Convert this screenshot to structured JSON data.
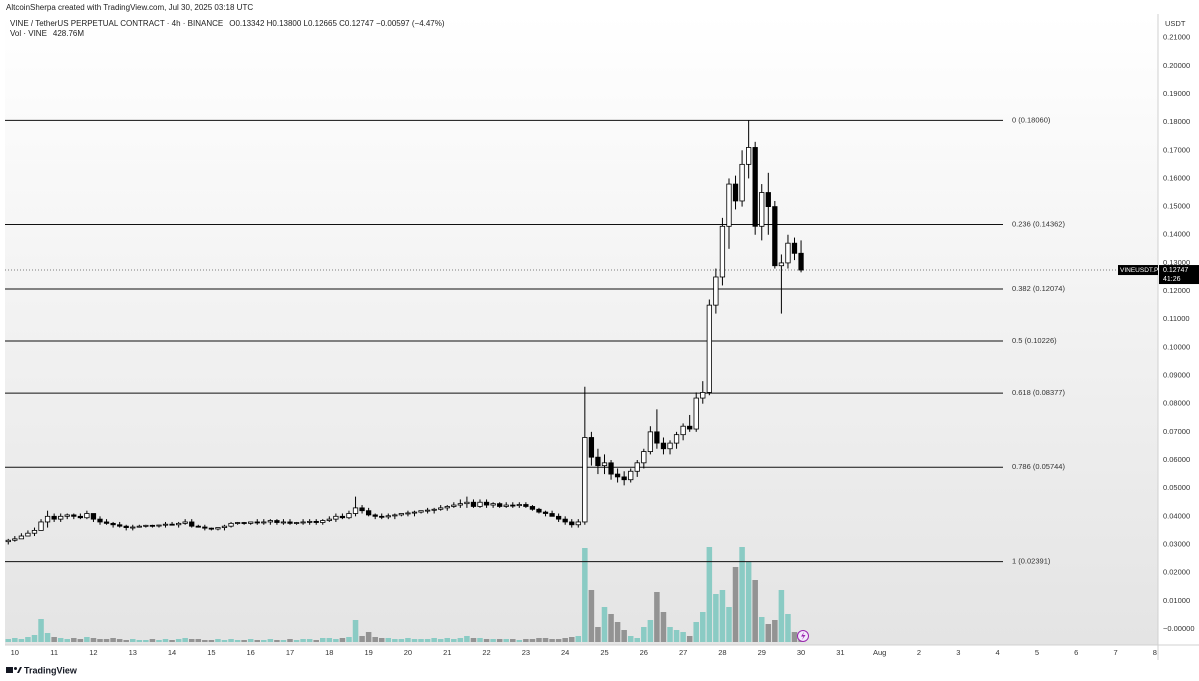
{
  "chart_data": {
    "type": "candlestick",
    "attribution": "AltcoinSherpa created with TradingView.com, Jul 30, 2025 03:18 UTC",
    "title": "VINE / TetherUS PERPETUAL CONTRACT · 4h · BINANCE",
    "ohlc_legend": "O0.13342 H0.13800 L0.12665 C0.12747 −0.00597 (−4.47%)",
    "volume_legend": "Vol · VINE",
    "volume_last_label": "428.76M",
    "y_label": "USDT",
    "footer": "TradingView",
    "price_tag": {
      "symbol": "VINEUSDT.P",
      "countdown": "41:26"
    },
    "up_color": "#ffffff",
    "down_color": "#000000",
    "volume_up_color": "#7fc8c0",
    "volume_down_color": "#8a8a8a",
    "xlim": [
      9.75,
      39.08
    ],
    "xticks": [
      10,
      11,
      12,
      13,
      14,
      15,
      16,
      17,
      18,
      19,
      20,
      21,
      22,
      23,
      24,
      25,
      26,
      27,
      28,
      29,
      30,
      31,
      {
        "value": 32,
        "label": "Aug"
      },
      {
        "value": 33,
        "label": "2"
      },
      {
        "value": 34,
        "label": "3"
      },
      {
        "value": 35,
        "label": "4"
      },
      {
        "value": 36,
        "label": "5"
      },
      {
        "value": 37,
        "label": "6"
      },
      {
        "value": 38,
        "label": "7"
      },
      {
        "value": 39,
        "label": "8"
      }
    ],
    "ylim": [
      -0.0057,
      0.2184
    ],
    "yticks": [
      {
        "value": 0.21,
        "label": "0.21000"
      },
      {
        "value": 0.2,
        "label": "0.20000"
      },
      {
        "value": 0.19,
        "label": "0.19000"
      },
      {
        "value": 0.18,
        "label": "0.18000"
      },
      {
        "value": 0.17,
        "label": "0.17000"
      },
      {
        "value": 0.16,
        "label": "0.16000"
      },
      {
        "value": 0.15,
        "label": "0.15000"
      },
      {
        "value": 0.14,
        "label": "0.14000"
      },
      {
        "value": 0.13,
        "label": "0.13000"
      },
      {
        "value": 0.12,
        "label": "0.12000"
      },
      {
        "value": 0.11,
        "label": "0.11000"
      },
      {
        "value": 0.1,
        "label": "0.10000"
      },
      {
        "value": 0.09,
        "label": "0.09000"
      },
      {
        "value": 0.08,
        "label": "0.08000"
      },
      {
        "value": 0.07,
        "label": "0.07000"
      },
      {
        "value": 0.06,
        "label": "0.06000"
      },
      {
        "value": 0.05,
        "label": "0.05000"
      },
      {
        "value": 0.04,
        "label": "0.04000"
      },
      {
        "value": 0.03,
        "label": "0.03000"
      },
      {
        "value": 0.02,
        "label": "0.02000"
      },
      {
        "value": 0.01,
        "label": "0.01000"
      },
      {
        "value": 0,
        "label": "−0.00000"
      }
    ],
    "fib_levels": [
      {
        "label": "0 (0.18060)",
        "value": 0.1806
      },
      {
        "label": "0.236 (0.14362)",
        "value": 0.14362
      },
      {
        "label": "0.382 (0.12074)",
        "value": 0.12074
      },
      {
        "label": "0.5 (0.10226)",
        "value": 0.10226
      },
      {
        "label": "0.618 (0.08377)",
        "value": 0.08377
      },
      {
        "label": "0.786 (0.05744)",
        "value": 0.05744
      },
      {
        "label": "1 (0.02391)",
        "value": 0.02391
      }
    ],
    "x": [
      9.833,
      10,
      10.167,
      10.333,
      10.5,
      10.667,
      10.833,
      11,
      11.167,
      11.333,
      11.5,
      11.667,
      11.833,
      12,
      12.167,
      12.333,
      12.5,
      12.667,
      12.833,
      13,
      13.167,
      13.333,
      13.5,
      13.667,
      13.833,
      14,
      14.167,
      14.333,
      14.5,
      14.667,
      14.833,
      15,
      15.167,
      15.333,
      15.5,
      15.667,
      15.833,
      16,
      16.167,
      16.333,
      16.5,
      16.667,
      16.833,
      17,
      17.167,
      17.333,
      17.5,
      17.667,
      17.833,
      18,
      18.167,
      18.333,
      18.5,
      18.667,
      18.833,
      19,
      19.167,
      19.333,
      19.5,
      19.667,
      19.833,
      20,
      20.167,
      20.333,
      20.5,
      20.667,
      20.833,
      21,
      21.167,
      21.333,
      21.5,
      21.667,
      21.833,
      22,
      22.167,
      22.333,
      22.5,
      22.667,
      22.833,
      23,
      23.167,
      23.333,
      23.5,
      23.667,
      23.833,
      24,
      24.167,
      24.333,
      24.5,
      24.667,
      24.833,
      25,
      25.167,
      25.333,
      25.5,
      25.667,
      25.833,
      26,
      26.167,
      26.333,
      26.5,
      26.667,
      26.833,
      27,
      27.167,
      27.333,
      27.5,
      27.667,
      27.833,
      28,
      28.167,
      28.333,
      28.5,
      28.667,
      28.833,
      29,
      29.167,
      29.333,
      29.5,
      29.667,
      29.833,
      30
    ],
    "open": [
      0.031,
      0.0315,
      0.032,
      0.033,
      0.034,
      0.035,
      0.038,
      0.04,
      0.039,
      0.04,
      0.0405,
      0.04,
      0.0395,
      0.041,
      0.039,
      0.038,
      0.0375,
      0.037,
      0.0365,
      0.036,
      0.0362,
      0.0365,
      0.0368,
      0.0366,
      0.0369,
      0.0372,
      0.037,
      0.0375,
      0.038,
      0.0365,
      0.0362,
      0.0358,
      0.0355,
      0.036,
      0.0365,
      0.0375,
      0.0378,
      0.0375,
      0.038,
      0.0378,
      0.038,
      0.0385,
      0.0378,
      0.038,
      0.0375,
      0.0378,
      0.038,
      0.0382,
      0.0378,
      0.0385,
      0.039,
      0.04,
      0.0395,
      0.041,
      0.043,
      0.042,
      0.0405,
      0.04,
      0.0398,
      0.0402,
      0.0405,
      0.041,
      0.0412,
      0.0415,
      0.042,
      0.0422,
      0.0425,
      0.043,
      0.0435,
      0.044,
      0.0445,
      0.045,
      0.0435,
      0.045,
      0.044,
      0.0445,
      0.0435,
      0.044,
      0.0438,
      0.0442,
      0.0435,
      0.0425,
      0.0415,
      0.041,
      0.04,
      0.039,
      0.038,
      0.037,
      0.038,
      0.068,
      0.061,
      0.058,
      0.059,
      0.055,
      0.054,
      0.053,
      0.056,
      0.059,
      0.063,
      0.07,
      0.066,
      0.064,
      0.066,
      0.069,
      0.072,
      0.071,
      0.082,
      0.084,
      0.115,
      0.125,
      0.143,
      0.158,
      0.152,
      0.165,
      0.171,
      0.143,
      0.155,
      0.15,
      0.129,
      0.13,
      0.137,
      0.13342
    ],
    "high": [
      0.032,
      0.033,
      0.034,
      0.035,
      0.036,
      0.039,
      0.042,
      0.041,
      0.041,
      0.041,
      0.041,
      0.041,
      0.042,
      0.041,
      0.04,
      0.039,
      0.038,
      0.038,
      0.037,
      0.037,
      0.037,
      0.037,
      0.037,
      0.037,
      0.038,
      0.038,
      0.038,
      0.039,
      0.039,
      0.037,
      0.037,
      0.036,
      0.036,
      0.037,
      0.038,
      0.038,
      0.038,
      0.038,
      0.039,
      0.039,
      0.039,
      0.039,
      0.039,
      0.039,
      0.038,
      0.039,
      0.039,
      0.039,
      0.039,
      0.04,
      0.041,
      0.041,
      0.042,
      0.047,
      0.044,
      0.043,
      0.041,
      0.041,
      0.041,
      0.041,
      0.041,
      0.042,
      0.042,
      0.042,
      0.043,
      0.043,
      0.044,
      0.044,
      0.045,
      0.046,
      0.047,
      0.046,
      0.046,
      0.046,
      0.045,
      0.045,
      0.045,
      0.045,
      0.045,
      0.045,
      0.044,
      0.043,
      0.042,
      0.042,
      0.041,
      0.04,
      0.039,
      0.039,
      0.086,
      0.07,
      0.064,
      0.062,
      0.06,
      0.057,
      0.056,
      0.057,
      0.06,
      0.064,
      0.072,
      0.078,
      0.068,
      0.067,
      0.07,
      0.073,
      0.076,
      0.084,
      0.088,
      0.117,
      0.128,
      0.146,
      0.16,
      0.161,
      0.17,
      0.1806,
      0.173,
      0.158,
      0.162,
      0.152,
      0.133,
      0.14,
      0.139,
      0.138
    ],
    "low": [
      0.03,
      0.031,
      0.032,
      0.033,
      0.033,
      0.035,
      0.036,
      0.038,
      0.038,
      0.039,
      0.039,
      0.039,
      0.039,
      0.038,
      0.037,
      0.037,
      0.036,
      0.036,
      0.035,
      0.035,
      0.036,
      0.036,
      0.036,
      0.036,
      0.036,
      0.037,
      0.036,
      0.037,
      0.036,
      0.036,
      0.035,
      0.035,
      0.035,
      0.035,
      0.036,
      0.037,
      0.037,
      0.037,
      0.037,
      0.037,
      0.037,
      0.037,
      0.037,
      0.037,
      0.037,
      0.037,
      0.037,
      0.037,
      0.037,
      0.038,
      0.038,
      0.039,
      0.039,
      0.04,
      0.041,
      0.04,
      0.039,
      0.039,
      0.039,
      0.039,
      0.04,
      0.04,
      0.04,
      0.041,
      0.041,
      0.041,
      0.042,
      0.042,
      0.043,
      0.043,
      0.043,
      0.043,
      0.043,
      0.043,
      0.043,
      0.043,
      0.043,
      0.043,
      0.043,
      0.043,
      0.042,
      0.041,
      0.04,
      0.04,
      0.038,
      0.037,
      0.036,
      0.036,
      0.037,
      0.058,
      0.055,
      0.055,
      0.053,
      0.052,
      0.051,
      0.052,
      0.054,
      0.057,
      0.062,
      0.064,
      0.062,
      0.062,
      0.064,
      0.067,
      0.07,
      0.07,
      0.08,
      0.083,
      0.112,
      0.122,
      0.135,
      0.149,
      0.15,
      0.16,
      0.14,
      0.138,
      0.14,
      0.128,
      0.112,
      0.128,
      0.131,
      0.12665
    ],
    "close": [
      0.0315,
      0.032,
      0.033,
      0.034,
      0.035,
      0.038,
      0.04,
      0.039,
      0.04,
      0.0405,
      0.04,
      0.0395,
      0.041,
      0.039,
      0.038,
      0.0375,
      0.037,
      0.0365,
      0.036,
      0.0362,
      0.0365,
      0.0368,
      0.0366,
      0.0369,
      0.0372,
      0.037,
      0.0375,
      0.038,
      0.0365,
      0.0362,
      0.0358,
      0.0355,
      0.036,
      0.0365,
      0.0375,
      0.0378,
      0.0375,
      0.038,
      0.0378,
      0.038,
      0.0385,
      0.0378,
      0.038,
      0.0375,
      0.0378,
      0.038,
      0.0382,
      0.0378,
      0.0385,
      0.039,
      0.04,
      0.0395,
      0.041,
      0.043,
      0.042,
      0.0405,
      0.04,
      0.0398,
      0.0402,
      0.0405,
      0.041,
      0.0412,
      0.0415,
      0.042,
      0.0422,
      0.0425,
      0.043,
      0.0435,
      0.044,
      0.0445,
      0.045,
      0.0435,
      0.045,
      0.044,
      0.0445,
      0.0435,
      0.044,
      0.0438,
      0.0442,
      0.0435,
      0.0425,
      0.0415,
      0.041,
      0.04,
      0.039,
      0.038,
      0.037,
      0.038,
      0.068,
      0.061,
      0.058,
      0.059,
      0.055,
      0.054,
      0.053,
      0.056,
      0.059,
      0.063,
      0.07,
      0.066,
      0.064,
      0.066,
      0.069,
      0.072,
      0.071,
      0.082,
      0.084,
      0.115,
      0.125,
      0.143,
      0.158,
      0.152,
      0.165,
      0.171,
      0.143,
      0.155,
      0.15,
      0.129,
      0.13,
      0.137,
      0.1334,
      0.12747
    ],
    "volume": [
      258,
      344,
      258,
      430,
      602,
      1978,
      774,
      430,
      344,
      258,
      344,
      258,
      430,
      344,
      258,
      258,
      344,
      258,
      172,
      258,
      172,
      172,
      258,
      172,
      258,
      172,
      258,
      344,
      258,
      258,
      172,
      172,
      258,
      172,
      258,
      172,
      172,
      258,
      172,
      172,
      258,
      172,
      172,
      258,
      172,
      258,
      258,
      172,
      344,
      344,
      258,
      344,
      430,
      1892,
      516,
      860,
      430,
      344,
      344,
      258,
      258,
      344,
      258,
      258,
      258,
      344,
      258,
      344,
      258,
      344,
      516,
      344,
      344,
      258,
      258,
      258,
      258,
      258,
      172,
      258,
      258,
      344,
      344,
      258,
      258,
      344,
      430,
      516,
      8084,
      4472,
      1290,
      3010,
      2408,
      1720,
      1032,
      516,
      344,
      1290,
      1892,
      4300,
      2580,
      1290,
      1032,
      860,
      516,
      1720,
      2580,
      8170,
      4128,
      4472,
      3010,
      6450,
      8170,
      6880,
      5332,
      2150,
      1548,
      1892,
      4472,
      2408,
      860,
      428.76
    ]
  }
}
